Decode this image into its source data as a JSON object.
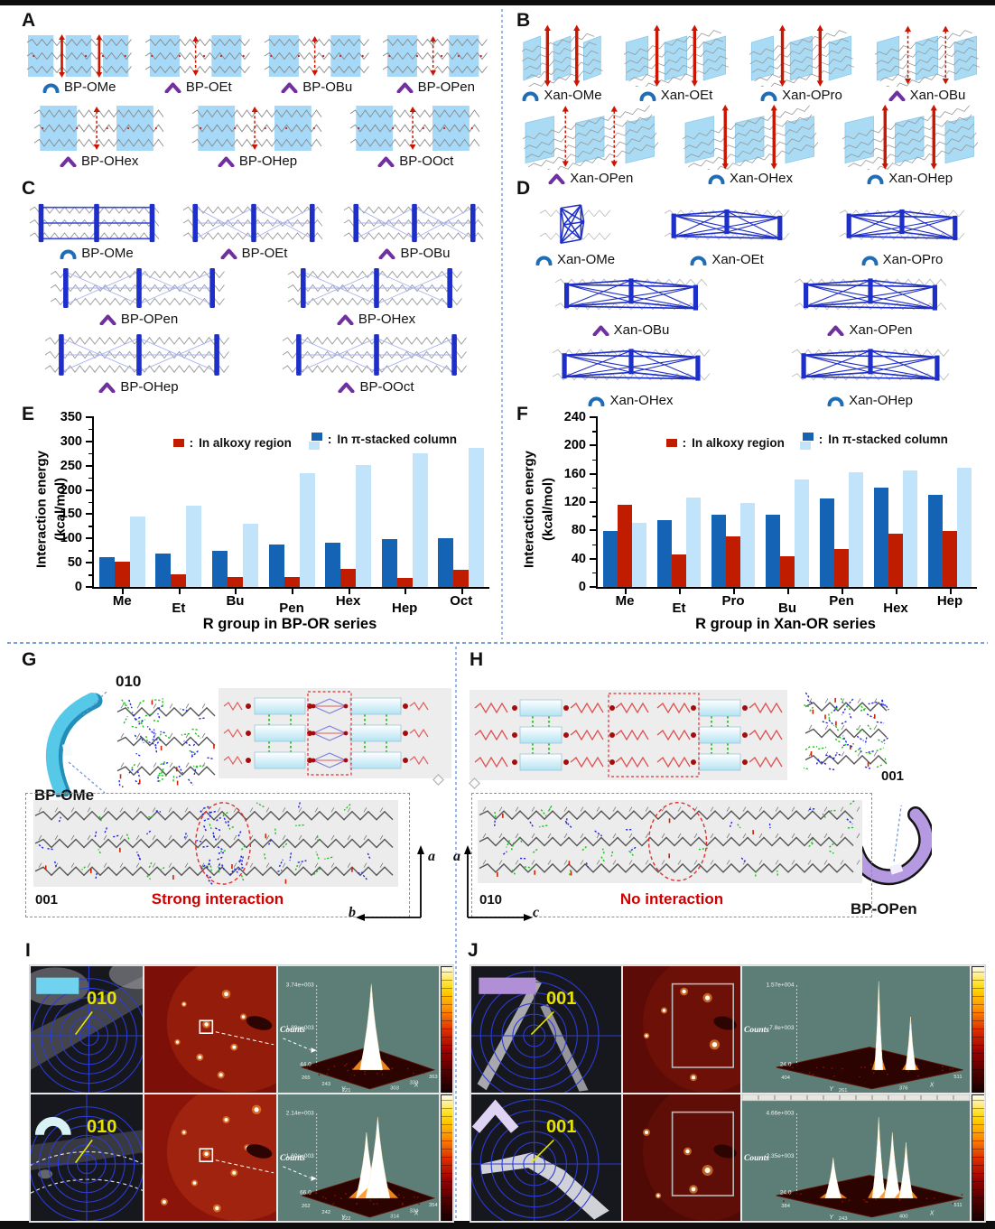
{
  "colors": {
    "accent_blue": "#1f6eb5",
    "accent_purple": "#7030a0",
    "bar_dark_blue": "#1563b5",
    "bar_red": "#c01d00",
    "bar_light_blue": "#c2e4fa",
    "mol_highlight": "#a6d9f7",
    "framework_blue": "#1e2ec8",
    "annotation_red": "#cf0000",
    "plane_label_yellow": "#e8e400",
    "teal_bg": "#5d7e77"
  },
  "panelA": {
    "label": "A",
    "row1": [
      {
        "name": "BP-OMe",
        "icon": "arc"
      },
      {
        "name": "BP-OEt",
        "icon": "chevron"
      },
      {
        "name": "BP-OBu",
        "icon": "chevron"
      },
      {
        "name": "BP-OPen",
        "icon": "chevron"
      }
    ],
    "row2": [
      {
        "name": "BP-OHex",
        "icon": "chevron"
      },
      {
        "name": "BP-OHep",
        "icon": "chevron"
      },
      {
        "name": "BP-OOct",
        "icon": "chevron"
      }
    ]
  },
  "panelB": {
    "label": "B",
    "row1": [
      {
        "name": "Xan-OMe",
        "icon": "arc"
      },
      {
        "name": "Xan-OEt",
        "icon": "arc"
      },
      {
        "name": "Xan-OPro",
        "icon": "arc"
      },
      {
        "name": "Xan-OBu",
        "icon": "chevron"
      }
    ],
    "row2": [
      {
        "name": "Xan-OPen",
        "icon": "chevron"
      },
      {
        "name": "Xan-OHex",
        "icon": "arc"
      },
      {
        "name": "Xan-OHep",
        "icon": "arc"
      }
    ]
  },
  "panelC": {
    "label": "C",
    "row1": [
      {
        "name": "BP-OMe",
        "icon": "arc"
      },
      {
        "name": "BP-OEt",
        "icon": "chevron"
      },
      {
        "name": "BP-OBu",
        "icon": "chevron"
      }
    ],
    "row2": [
      {
        "name": "BP-OPen",
        "icon": "chevron"
      },
      {
        "name": "BP-OHex",
        "icon": "chevron"
      }
    ],
    "row3": [
      {
        "name": "BP-OHep",
        "icon": "chevron"
      },
      {
        "name": "BP-OOct",
        "icon": "chevron"
      }
    ]
  },
  "panelD": {
    "label": "D",
    "row1": [
      {
        "name": "Xan-OMe",
        "icon": "arc"
      },
      {
        "name": "Xan-OEt",
        "icon": "arc"
      },
      {
        "name": "Xan-OPro",
        "icon": "arc"
      }
    ],
    "row2": [
      {
        "name": "Xan-OBu",
        "icon": "chevron"
      },
      {
        "name": "Xan-OPen",
        "icon": "chevron"
      }
    ],
    "row3": [
      {
        "name": "Xan-OHex",
        "icon": "arc"
      },
      {
        "name": "Xan-OHep",
        "icon": "arc"
      }
    ]
  },
  "chart_data": [
    {
      "panel": "E",
      "type": "bar",
      "categories": [
        "Me",
        "Et",
        "Bu",
        "Pen",
        "Hex",
        "Hep",
        "Oct"
      ],
      "series": [
        {
          "name": "In π-stacked column (pairwise)",
          "color": "dark_blue",
          "values": [
            62,
            68,
            74,
            88,
            91,
            98,
            100
          ]
        },
        {
          "name": "In alkoxy region",
          "color": "red",
          "values": [
            52,
            27,
            21,
            20,
            38,
            18,
            36
          ]
        },
        {
          "name": "In π-stacked column (total)",
          "color": "light_blue",
          "values": [
            146,
            167,
            130,
            235,
            251,
            276,
            286
          ]
        }
      ],
      "legend": [
        {
          "swatch": "red",
          "label": "In alkoxy region"
        },
        {
          "swatch": "blue-pair",
          "label": "In π-stacked column"
        }
      ],
      "legend_separator": ":",
      "ylabel_line1": "Interaction energy",
      "ylabel_line2": "(kcal/mol)",
      "xlabel": "R group in BP-OR series",
      "ylim": [
        0,
        350
      ],
      "ytick_step": 50,
      "grid": false,
      "legend_position": "top-inside"
    },
    {
      "panel": "F",
      "type": "bar",
      "categories": [
        "Me",
        "Et",
        "Pro",
        "Bu",
        "Pen",
        "Hex",
        "Hep"
      ],
      "series": [
        {
          "name": "In π-stacked column (pairwise)",
          "color": "dark_blue",
          "values": [
            79,
            94,
            102,
            102,
            125,
            140,
            130
          ]
        },
        {
          "name": "In alkoxy region",
          "color": "red",
          "values": [
            116,
            46,
            72,
            44,
            53,
            75,
            79
          ]
        },
        {
          "name": "In π-stacked column (total)",
          "color": "light_blue",
          "values": [
            91,
            127,
            119,
            152,
            162,
            165,
            168
          ]
        }
      ],
      "legend": [
        {
          "swatch": "red",
          "label": "In alkoxy region"
        },
        {
          "swatch": "blue-pair",
          "label": "In π-stacked column"
        }
      ],
      "legend_separator": ":",
      "ylabel_line1": "Interaction energy",
      "ylabel_line2": "(kcal/mol)",
      "xlabel": "R group in Xan-OR series",
      "ylim": [
        0,
        240
      ],
      "ytick_step": 40,
      "grid": false,
      "legend_position": "top-inside"
    }
  ],
  "panelG": {
    "label": "G",
    "plane_top": "010",
    "crystal_name": "BP-OMe",
    "view_plane": "001",
    "annotation": "Strong interaction",
    "axis_vertical": "a",
    "axis_horizontal": "b"
  },
  "panelH": {
    "label": "H",
    "plane_right": "001",
    "crystal_name": "BP-OPen",
    "view_plane": "010",
    "annotation": "No interaction",
    "axis_vertical": "a",
    "axis_horizontal": "c"
  },
  "panelI": {
    "label": "I",
    "rows": [
      {
        "plane": "010",
        "counts_label": "Counts",
        "z_max": "3.74e+003",
        "z_mid": "1.89e+003",
        "z_min": "44.0",
        "y_ticks": [
          "265",
          "243",
          "221"
        ],
        "x_ticks": [
          "303",
          "333",
          "363"
        ],
        "y_label": "Y",
        "x_label": "X"
      },
      {
        "plane": "010",
        "counts_label": "Counts",
        "z_max": "2.14e+003",
        "z_mid": "1.60e+003",
        "z_min": "66.0",
        "y_ticks": [
          "262",
          "242",
          "222"
        ],
        "x_ticks": [
          "314",
          "334",
          "354"
        ],
        "y_label": "Y",
        "x_label": "X"
      }
    ]
  },
  "panelJ": {
    "label": "J",
    "rows": [
      {
        "plane": "001",
        "counts_label": "Counts",
        "z_max": "1.57e+004",
        "z_mid": "7.8e+003",
        "z_min": "24.0",
        "y_ticks": [
          "404",
          "261"
        ],
        "x_ticks": [
          "376",
          "511"
        ],
        "y_label": "Y",
        "x_label": "X"
      },
      {
        "plane": "001",
        "counts_label": "Counts",
        "z_max": "4.66e+003",
        "z_mid": "2.35e+003",
        "z_min": "24.0",
        "y_ticks": [
          "384",
          "243"
        ],
        "x_ticks": [
          "400",
          "511"
        ],
        "y_label": "Y",
        "x_label": "X"
      }
    ]
  }
}
